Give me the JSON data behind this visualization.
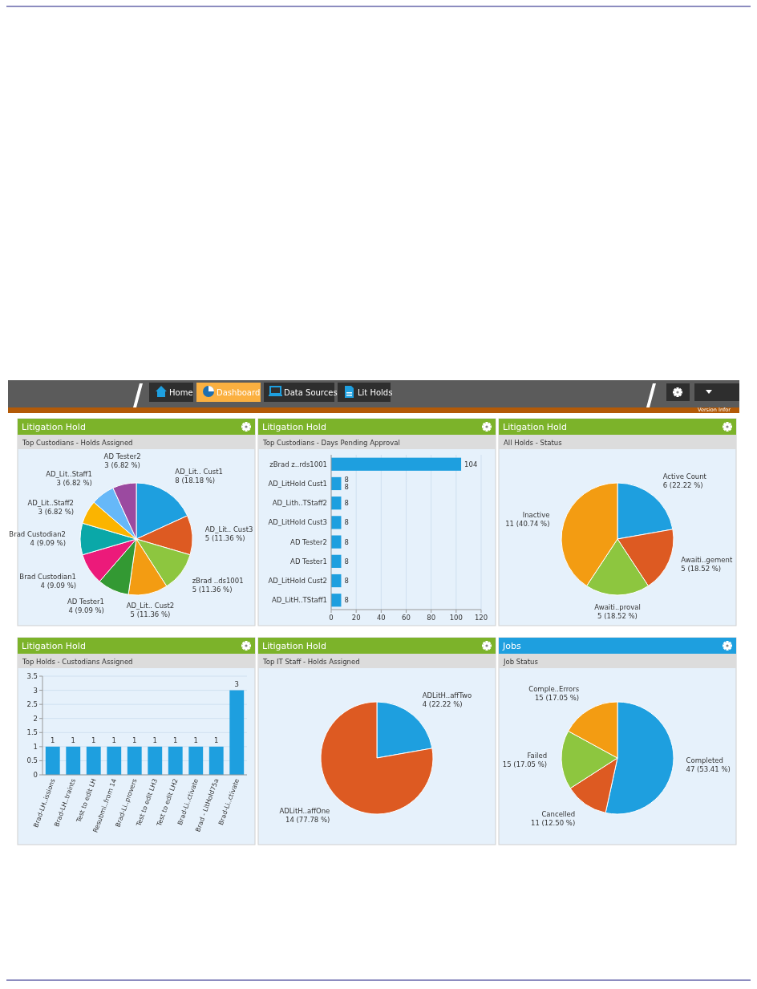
{
  "chart_data": [
    {
      "type": "other",
      "annotations": [
        "Home",
        "Dashboard",
        "Data Sources",
        "Lit Holds",
        "Version Infor"
      ]
    },
    {
      "type": "pie",
      "title": "Litigation Hold",
      "subtitle": "Top Custodians - Holds Assigned",
      "categories": [
        "AD_Lit.. Cust1",
        "AD_Lit.. Cust3",
        "zBrad ..ds1001",
        "AD_Lit.. Cust2",
        "AD Tester1",
        "Brad Custodian1",
        "Brad Custodian2",
        "AD_Lit..Staff2",
        "AD_Lit..Staff1",
        "AD Tester2"
      ],
      "values": [
        8,
        5,
        5,
        5,
        4,
        4,
        4,
        3,
        3,
        3
      ],
      "colors": [
        "#1e9fdf",
        "#dd5a22",
        "#8dc63f",
        "#f39c12",
        "#339933",
        "#ec1a7a",
        "#0aa8a8",
        "#fbb400",
        "#66b8f8",
        "#9b4aa0"
      ],
      "value_labels": [
        "8 (18.18 %)",
        "5 (11.36 %)",
        "5 (11.36 %)",
        "5 (11.36 %)",
        "4 (9.09 %)",
        "4 (9.09 %)",
        "4 (9.09 %)",
        "3 (6.82 %)",
        "3 (6.82 %)",
        "3 (6.82 %)"
      ]
    },
    {
      "type": "bar",
      "orientation": "horizontal",
      "title": "Litigation Hold",
      "subtitle": "Top Custodians - Days Pending Approval",
      "categories": [
        "zBrad z..rds1001",
        "AD_LitHold Cust1",
        "AD_Lith..TStaff2",
        "AD_LitHold Cust3",
        "AD Tester2",
        "AD Tester1",
        "AD_LitHold Cust2",
        "AD_LitH..TStaff1"
      ],
      "values": [
        104,
        8,
        8,
        8,
        8,
        8,
        8,
        8
      ],
      "color": "#1e9fdf",
      "xlim": [
        0,
        120
      ],
      "xticks": [
        0,
        20,
        40,
        60,
        80,
        100,
        120
      ],
      "grid": "x",
      "value_labels": [
        "104",
        "8\n8",
        "8",
        "8",
        "8",
        "8",
        "8",
        "8"
      ]
    },
    {
      "type": "pie",
      "title": "Litigation Hold",
      "subtitle": "All Holds - Status",
      "categories": [
        "Active Count",
        "Awaiti..gement",
        "Awaiti..proval",
        "Inactive"
      ],
      "values": [
        6,
        5,
        5,
        11
      ],
      "colors": [
        "#1e9fdf",
        "#dd5a22",
        "#8dc63f",
        "#f39c12"
      ],
      "value_labels": [
        "6 (22.22 %)",
        "5 (18.52 %)",
        "5 (18.52 %)",
        "11 (40.74 %)"
      ]
    },
    {
      "type": "bar",
      "title": "Litigation Hold",
      "subtitle": "Top Holds - Custodians Assigned",
      "categories": [
        "Brad-LH..issions",
        "Brad-LH..traints",
        "Test to edit LH",
        "Resubmi..from 14",
        "Brad-Li..provers",
        "Test to edit LH3",
        "Test to edit LH2",
        "Brad-Li..ctivate",
        "Brad - LitHold75a",
        "Brad-Li..ctivate"
      ],
      "values": [
        1,
        1,
        1,
        1,
        1,
        1,
        1,
        1,
        1,
        3
      ],
      "color": "#1e9fdf",
      "ylim": [
        0,
        3.5
      ],
      "yticks": [
        0,
        0.5,
        1,
        1.5,
        2,
        2.5,
        3,
        3.5
      ],
      "grid": "y",
      "data_labels": true
    },
    {
      "type": "pie",
      "title": "Litigation Hold",
      "subtitle": "Top IT Staff - Holds Assigned",
      "categories": [
        "ADLitH..affTwo",
        "ADLitH..affOne"
      ],
      "values": [
        4,
        14
      ],
      "colors": [
        "#1e9fdf",
        "#dd5a22"
      ],
      "value_labels": [
        "4 (22.22 %)",
        "14 (77.78 %)"
      ]
    },
    {
      "type": "pie",
      "title": "Jobs",
      "subtitle": "Job Status",
      "categories": [
        "Completed",
        "Cancelled",
        "Failed",
        "Comple..Errors"
      ],
      "values": [
        47,
        11,
        15,
        15
      ],
      "colors": [
        "#1e9fdf",
        "#dd5a22",
        "#8dc63f",
        "#f39c12"
      ],
      "value_labels": [
        "47 (53.41 %)",
        "11 (12.50 %)",
        "15 (17.05 %)",
        "15 (17.05 %)"
      ]
    }
  ]
}
